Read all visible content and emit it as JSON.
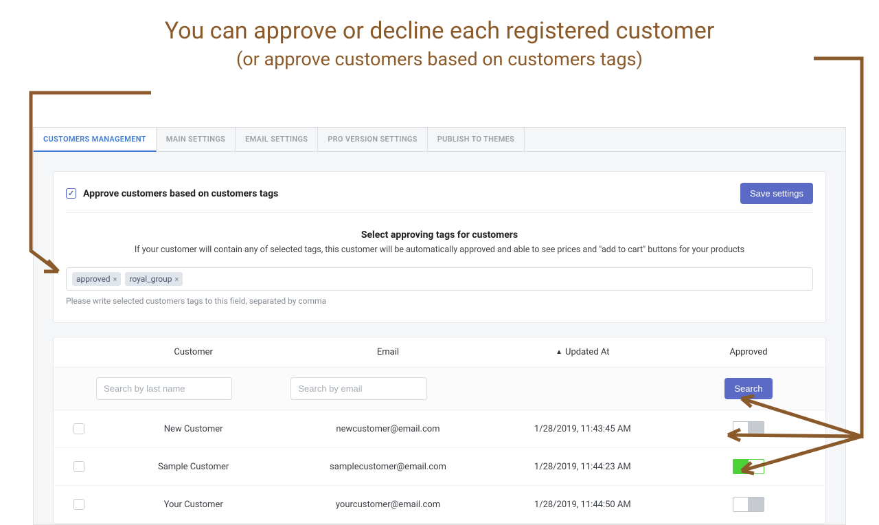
{
  "annotation": {
    "title": "You can approve or decline each registered customer",
    "subtitle": "(or approve customers based on customers tags)",
    "color": "#8b5a2b"
  },
  "tabs": [
    {
      "label": "CUSTOMERS MANAGEMENT",
      "active": true
    },
    {
      "label": "MAIN SETTINGS",
      "active": false
    },
    {
      "label": "EMAIL SETTINGS",
      "active": false
    },
    {
      "label": "PRO VERSION SETTINGS",
      "active": false
    },
    {
      "label": "PUBLISH TO THEMES",
      "active": false
    }
  ],
  "panel": {
    "checkbox_checked": true,
    "title": "Approve customers based on customers tags",
    "save_button": "Save settings",
    "section_title": "Select approving tags for customers",
    "section_desc": "If your customer will contain any of selected tags, this customer will be automatically approved and able to see prices and \"add to cart\" buttons for your products",
    "tags": [
      "approved",
      "royal_group"
    ],
    "helper": "Please write selected customers tags to this field, separated by comma"
  },
  "table": {
    "columns": [
      "Customer",
      "Email",
      "Updated At",
      "Approved"
    ],
    "sort_column": "Updated At",
    "sort_dir": "asc",
    "filters": {
      "lastname_placeholder": "Search by last name",
      "email_placeholder": "Search by email",
      "search_button": "Search"
    },
    "rows": [
      {
        "customer": "New Customer",
        "email": "newcustomer@email.com",
        "updated": "1/28/2019, 11:43:45 AM",
        "approved": false
      },
      {
        "customer": "Sample Customer",
        "email": "samplecustomer@email.com",
        "updated": "1/28/2019, 11:44:23 AM",
        "approved": true
      },
      {
        "customer": "Your Customer",
        "email": "yourcustomer@email.com",
        "updated": "1/28/2019, 11:44:50 AM",
        "approved": false
      }
    ]
  },
  "colors": {
    "primary_button": "#5b6ac4",
    "tab_active": "#3e7bd6",
    "toggle_on": "#4cd137",
    "toggle_off_knob": "#c6cbd1",
    "background": "#f5f6f8",
    "annotation": "#8b5a2b"
  }
}
